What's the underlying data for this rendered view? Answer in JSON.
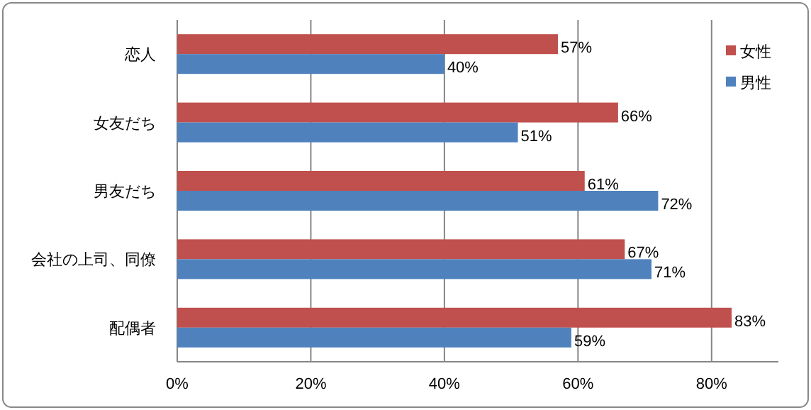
{
  "chart_data": {
    "type": "bar",
    "orientation": "horizontal",
    "categories": [
      "恋人",
      "女友だち",
      "男友だち",
      "会社の上司、同僚",
      "配偶者"
    ],
    "series": [
      {
        "name": "女性",
        "color": "#c0504d",
        "values": [
          57,
          66,
          61,
          67,
          83
        ],
        "value_labels": [
          "57%",
          "66%",
          "61%",
          "67%",
          "83%"
        ]
      },
      {
        "name": "男性",
        "color": "#4f81bd",
        "values": [
          40,
          51,
          72,
          71,
          59
        ],
        "value_labels": [
          "40%",
          "51%",
          "72%",
          "71%",
          "59%"
        ]
      }
    ],
    "xlim": [
      0,
      90
    ],
    "xticks": [
      {
        "value": 0,
        "label": "0%"
      },
      {
        "value": 20,
        "label": "20%"
      },
      {
        "value": 40,
        "label": "40%"
      },
      {
        "value": 60,
        "label": "60%"
      },
      {
        "value": 80,
        "label": "80%"
      }
    ],
    "grid": "x",
    "legend": "top right"
  }
}
